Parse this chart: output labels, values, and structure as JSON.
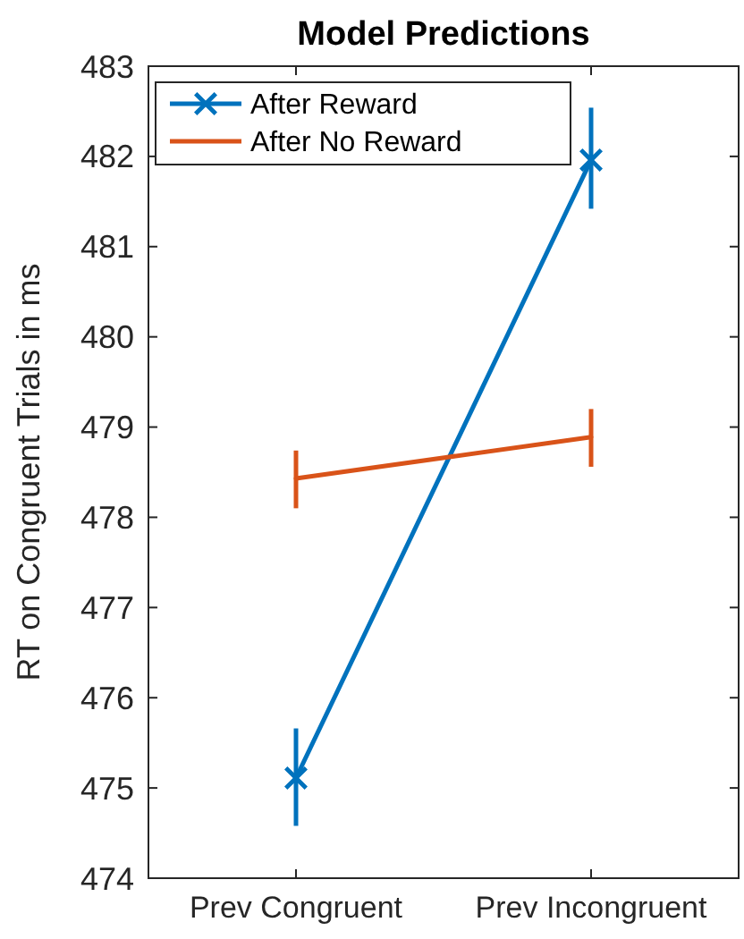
{
  "chart_data": {
    "type": "line",
    "title": "Model Predictions",
    "ylabel": "RT on Congruent Trials in ms",
    "categories": [
      "Prev Congruent",
      "Prev Incongruent"
    ],
    "series": [
      {
        "name": "After Reward",
        "color": "#0072bd",
        "marker": "cross",
        "values": [
          475.11,
          481.96
        ],
        "errors": [
          [
            474.58,
            475.66
          ],
          [
            481.42,
            482.54
          ]
        ]
      },
      {
        "name": "After No Reward",
        "color": "#d95319",
        "marker": "none",
        "values": [
          478.43,
          478.89
        ],
        "errors": [
          [
            478.1,
            478.74
          ],
          [
            478.56,
            479.2
          ]
        ]
      }
    ],
    "ylim": [
      474,
      483
    ],
    "yticks": [
      474,
      475,
      476,
      477,
      478,
      479,
      480,
      481,
      482,
      483
    ],
    "grid": false,
    "legend": "top left"
  }
}
